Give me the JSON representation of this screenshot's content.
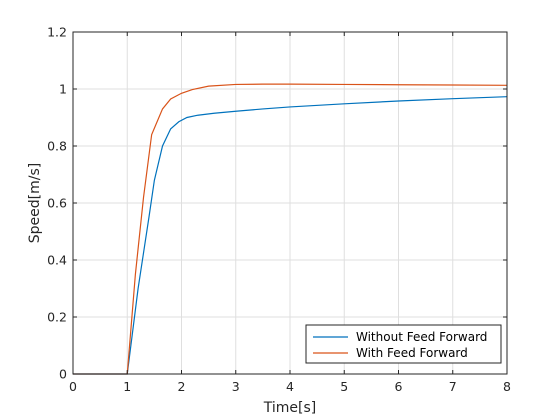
{
  "chart_data": {
    "type": "line",
    "xlabel": "Time[s]",
    "ylabel": "Speed[m/s]",
    "xlim": [
      0,
      8
    ],
    "ylim": [
      0,
      1.2
    ],
    "xticks": [
      0,
      1,
      2,
      3,
      4,
      5,
      6,
      7,
      8
    ],
    "yticks": [
      0,
      0.2,
      0.4,
      0.6,
      0.8,
      1,
      1.2
    ],
    "xtick_labels": [
      "0",
      "1",
      "2",
      "3",
      "4",
      "5",
      "6",
      "7",
      "8"
    ],
    "ytick_labels": [
      "0",
      "0.2",
      "0.4",
      "0.6",
      "0.8",
      "1",
      "1.2"
    ],
    "grid": true,
    "legend_position": "bottom-right",
    "series": [
      {
        "name": "Without Feed Forward",
        "color": "#0072bd",
        "x": [
          0,
          1.0,
          1.2,
          1.4,
          1.5,
          1.65,
          1.8,
          1.95,
          2.1,
          2.3,
          2.6,
          3.0,
          3.5,
          4.0,
          5.0,
          6.0,
          7.0,
          8.0
        ],
        "y": [
          0,
          0,
          0.3,
          0.55,
          0.68,
          0.8,
          0.86,
          0.885,
          0.9,
          0.908,
          0.915,
          0.922,
          0.93,
          0.937,
          0.948,
          0.958,
          0.966,
          0.973
        ]
      },
      {
        "name": "With Feed Forward",
        "color": "#d95319",
        "x": [
          0,
          1.0,
          1.15,
          1.3,
          1.45,
          1.65,
          1.8,
          2.0,
          2.2,
          2.5,
          3.0,
          3.5,
          4.0,
          5.0,
          6.0,
          7.0,
          8.0
        ],
        "y": [
          0,
          0,
          0.35,
          0.62,
          0.84,
          0.93,
          0.965,
          0.985,
          0.998,
          1.01,
          1.016,
          1.017,
          1.017,
          1.016,
          1.015,
          1.014,
          1.013
        ]
      }
    ]
  }
}
